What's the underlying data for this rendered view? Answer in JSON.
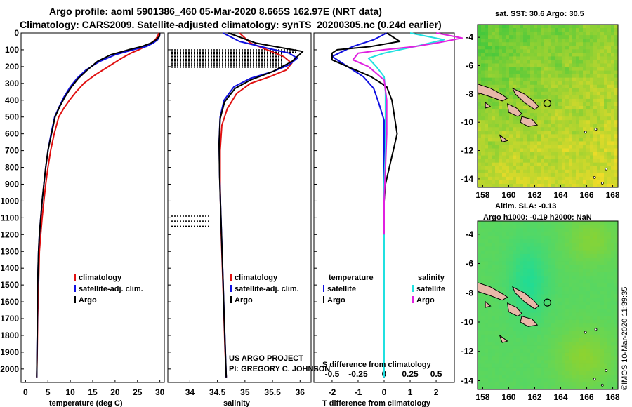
{
  "titles": {
    "line1": "Argo profile: aoml 5901386_460 05-Mar-2020 8.665S 162.97E (NRT data)",
    "line2": "Climatology: CARS2009. Satellite-adjusted climatology: synTS_20200305.nc (0.24d earlier)"
  },
  "credit": {
    "line1": "US ARGO PROJECT",
    "line2": "PI: GREGORY C. JOHNSON"
  },
  "watermark": "©IMOS 10-Mar-2020 11:39:35",
  "colors": {
    "climatology": "#e01010",
    "satellite": "#1010e0",
    "argo": "#000000",
    "sat_salinity": "#20e0e0",
    "argo_salinity": "#e020e0"
  },
  "chart_data": [
    {
      "type": "line",
      "id": "temperature",
      "xlabel": "temperature (deg C)",
      "xlim": [
        -1,
        31
      ],
      "ylim": [
        2080,
        0
      ],
      "xticks": [
        0,
        5,
        10,
        15,
        20,
        25,
        30
      ],
      "yticks": [
        0,
        100,
        200,
        300,
        400,
        500,
        600,
        700,
        800,
        900,
        1000,
        1100,
        1200,
        1300,
        1400,
        1500,
        1600,
        1700,
        1800,
        1900,
        2000
      ],
      "legend": [
        "climatology",
        "satellite-adj. clim.",
        "Argo"
      ],
      "series": [
        {
          "name": "climatology",
          "color": "#e01010",
          "x": [
            29.8,
            29.5,
            29,
            28,
            26.8,
            25.3,
            23.5,
            21.5,
            18.5,
            15.5,
            13,
            11.3,
            9.8,
            8.5,
            7.4,
            6.4,
            5.6,
            5,
            4.5,
            4.1,
            3.7,
            3.4,
            3.1,
            2.9,
            2.7,
            2.6,
            2.5
          ],
          "y": [
            0,
            20,
            40,
            60,
            80,
            100,
            120,
            150,
            200,
            250,
            300,
            350,
            400,
            450,
            500,
            600,
            700,
            800,
            900,
            1000,
            1100,
            1200,
            1300,
            1500,
            1700,
            1900,
            2050
          ]
        },
        {
          "name": "satellite-adj. clim.",
          "color": "#1010e0",
          "x": [
            30,
            29.9,
            29.5,
            28.5,
            27,
            24,
            20,
            16.5,
            13.5,
            11.5,
            10,
            8.6,
            7.5,
            6.5,
            5.7,
            5,
            4.5,
            4.1,
            3.7,
            3.4,
            3.1,
            2.9,
            2.7,
            2.6,
            2.5
          ],
          "y": [
            0,
            20,
            40,
            60,
            80,
            100,
            130,
            170,
            220,
            270,
            320,
            380,
            440,
            500,
            600,
            700,
            800,
            900,
            1000,
            1100,
            1200,
            1300,
            1500,
            1800,
            2050
          ]
        },
        {
          "name": "Argo",
          "color": "#000000",
          "x": [
            30,
            29.9,
            29.2,
            28,
            26,
            23,
            19,
            16,
            13.8,
            11.8,
            10.3,
            8.8,
            7.6,
            6.6,
            5.8,
            5,
            4.5,
            4.1,
            3.7,
            3.4,
            3.1,
            2.9,
            2.7,
            2.6,
            2.5
          ],
          "y": [
            0,
            20,
            40,
            60,
            80,
            100,
            130,
            170,
            220,
            270,
            320,
            380,
            440,
            500,
            600,
            700,
            800,
            900,
            1000,
            1100,
            1200,
            1300,
            1500,
            1800,
            2050
          ]
        }
      ]
    },
    {
      "type": "line",
      "id": "salinity",
      "xlabel": "salinity",
      "xlim": [
        33.6,
        36.2
      ],
      "ylim": [
        2080,
        0
      ],
      "xticks": [
        34,
        34.5,
        35,
        35.5,
        36
      ],
      "legend": [
        "climatology",
        "satellite-adj. clim.",
        "Argo"
      ],
      "series": [
        {
          "name": "climatology",
          "color": "#e01010",
          "x": [
            34.9,
            35.1,
            35.4,
            35.7,
            35.85,
            35.75,
            35.45,
            35.1,
            34.85,
            34.68,
            34.58,
            34.55,
            34.55,
            34.56,
            34.58,
            34.6,
            34.62,
            34.64,
            34.66
          ],
          "y": [
            0,
            60,
            100,
            140,
            180,
            220,
            260,
            300,
            360,
            450,
            550,
            700,
            900,
            1100,
            1300,
            1500,
            1700,
            1900,
            2050
          ]
        },
        {
          "name": "satellite-adj. clim.",
          "color": "#1010e0",
          "x": [
            34.6,
            34.9,
            35.4,
            35.8,
            35.95,
            35.8,
            35.5,
            35.1,
            34.8,
            34.62,
            34.55,
            34.53,
            34.54,
            34.56,
            34.58,
            34.6,
            34.62,
            34.64,
            34.66
          ],
          "y": [
            0,
            50,
            90,
            120,
            150,
            190,
            230,
            270,
            320,
            400,
            500,
            650,
            850,
            1050,
            1250,
            1450,
            1650,
            1850,
            2050
          ]
        },
        {
          "name": "Argo",
          "color": "#000000",
          "x": [
            34.7,
            35.2,
            35.7,
            36.05,
            35.85,
            35.5,
            35.1,
            34.82,
            34.63,
            34.55,
            34.53,
            34.54,
            34.56,
            34.58,
            34.6,
            34.62,
            34.64,
            34.66
          ],
          "y": [
            0,
            60,
            90,
            110,
            170,
            230,
            280,
            330,
            410,
            510,
            660,
            860,
            1060,
            1260,
            1460,
            1660,
            1860,
            2050
          ]
        }
      ]
    },
    {
      "type": "line",
      "id": "difference",
      "xlabel": "T difference from climatology",
      "xlabel2": "S difference from climatology",
      "xlim": [
        -2.7,
        2.7
      ],
      "ylim": [
        2080,
        0
      ],
      "xticks": [
        -2,
        -1,
        0,
        1,
        2
      ],
      "s_xticks": [
        -0.5,
        -0.25,
        0,
        0.25,
        0.5
      ],
      "legend_left_title": "temperature",
      "legend_right_title": "salinity",
      "legend_left": [
        "satellite",
        "Argo"
      ],
      "legend_right": [
        "satellite",
        "Argo"
      ],
      "series": [
        {
          "name": "satellite",
          "color": "#1010e0",
          "x": [
            0.1,
            -0.4,
            -1.2,
            -1.6,
            -2.0,
            -1.4,
            -0.8,
            -0.4,
            -0.2,
            0,
            0,
            0,
            0,
            0,
            0,
            0,
            0,
            0,
            0,
            0,
            0
          ],
          "y": [
            0,
            40,
            80,
            110,
            140,
            200,
            260,
            330,
            420,
            520,
            600,
            700,
            800,
            900,
            1000,
            1100,
            1300,
            1500,
            1700,
            1900,
            2050
          ]
        },
        {
          "name": "Argo",
          "color": "#000000",
          "x": [
            0.1,
            0.6,
            -0.5,
            -1.8,
            -2.0,
            -2.0,
            -1.4,
            -0.5,
            0.1,
            0.3,
            0.4,
            0.5,
            0.35,
            0.2,
            0.05,
            0,
            0,
            0,
            0,
            0,
            0
          ],
          "y": [
            0,
            50,
            80,
            100,
            120,
            160,
            200,
            260,
            320,
            400,
            500,
            600,
            700,
            800,
            900,
            1000,
            1100,
            1300,
            1500,
            1700,
            2050
          ]
        },
        {
          "name": "satellite",
          "color": "#20e0e0",
          "x": [
            1.0,
            2.3,
            1.2,
            0.6,
            0.0,
            -0.6,
            -0.3,
            0.0,
            0.05,
            0.05,
            0.05,
            0.0,
            0.0,
            0.0,
            0.0,
            0.0
          ],
          "y": [
            0,
            40,
            80,
            100,
            120,
            150,
            200,
            260,
            350,
            500,
            700,
            900,
            1100,
            1400,
            1700,
            2050
          ]
        },
        {
          "name": "Argo",
          "color": "#e020e0",
          "x": [
            2.0,
            3.0,
            2.0,
            1.2,
            0.0,
            -1.0,
            -1.2,
            -0.6,
            0.0,
            0.1,
            0.1,
            0.05,
            0.0,
            0.0,
            0.0
          ],
          "y": [
            0,
            30,
            60,
            80,
            100,
            120,
            160,
            200,
            280,
            400,
            600,
            800,
            1000,
            1100,
            1200
          ]
        }
      ]
    },
    {
      "type": "heatmap",
      "id": "sst-map",
      "title": "sat. SST: 30.6 Argo: 30.5",
      "xlim": [
        157.6,
        168.4
      ],
      "ylim": [
        -14.6,
        -3.1
      ],
      "xticks": [
        158,
        160,
        162,
        164,
        166,
        168
      ],
      "yticks": [
        -4,
        -6,
        -8,
        -10,
        -12,
        -14
      ],
      "marker": {
        "lon": 162.97,
        "lat": -8.665
      }
    },
    {
      "type": "heatmap",
      "id": "sla-map",
      "title": "Altim. SLA: -0.13",
      "subtitle": "Argo h1000: -0.19 h2000: NaN",
      "xlim": [
        157.6,
        168.4
      ],
      "ylim": [
        -14.6,
        -3.1
      ],
      "xticks": [
        158,
        160,
        162,
        164,
        166,
        168
      ],
      "yticks": [
        -4,
        -6,
        -8,
        -10,
        -12,
        -14
      ],
      "marker": {
        "lon": 162.97,
        "lat": -8.665
      }
    }
  ]
}
